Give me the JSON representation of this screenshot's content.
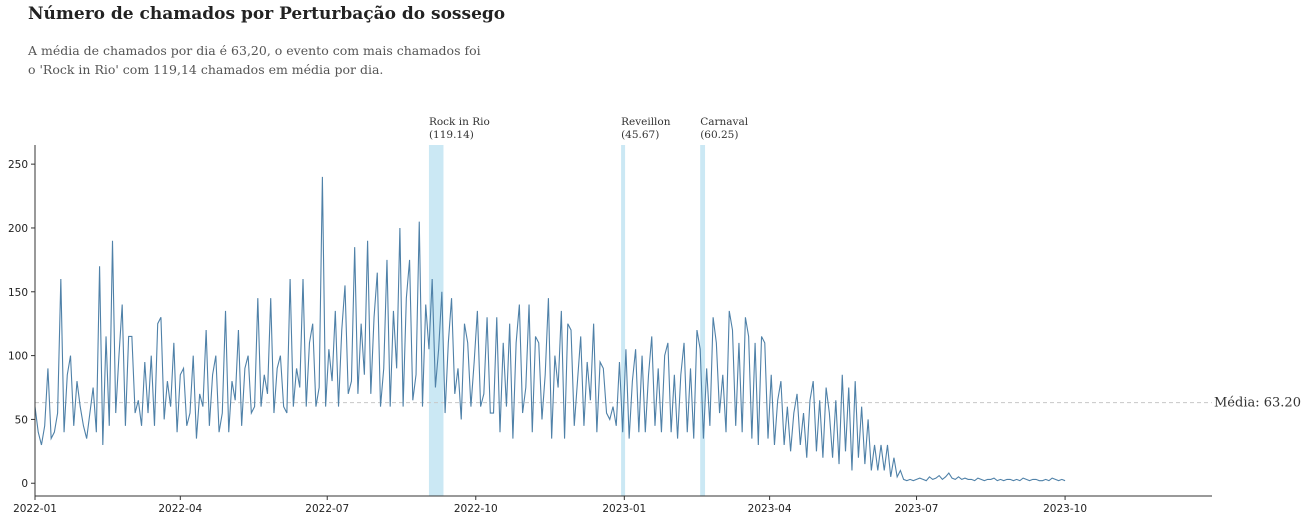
{
  "title": "Número de chamados por Perturbação do sossego",
  "subtitle_lines": [
    "A média de chamados por dia é 63,20, o evento com mais chamados foi",
    "o 'Rock in Rio' com 119,14 chamados em média por dia."
  ],
  "colors": {
    "line": "#4f81a8",
    "event_band": "#a9d8ec",
    "mean_line": "#c8c8c8"
  },
  "chart_data": {
    "type": "line",
    "x_start": "2022-01-01",
    "x_end": "2023-12-31",
    "ylim": [
      -10,
      265
    ],
    "yticks": [
      0,
      50,
      100,
      150,
      200,
      250
    ],
    "xticks": [
      "2022-01",
      "2022-04",
      "2022-07",
      "2022-10",
      "2023-01",
      "2023-04",
      "2023-07",
      "2023-10"
    ],
    "mean": {
      "value": 63.2,
      "label": "Média: 63.20"
    },
    "events": [
      {
        "name": "Rock in Rio",
        "value_label": "(119.14)",
        "start": "2022-09-02",
        "end": "2022-09-11"
      },
      {
        "name": "Reveillon",
        "value_label": "(45.67)",
        "start": "2022-12-30",
        "end": "2023-01-01"
      },
      {
        "name": "Carnaval",
        "value_label": "(60.25)",
        "start": "2023-02-17",
        "end": "2023-02-20"
      }
    ],
    "series": [
      {
        "x_start": "2022-01-01",
        "x_step_days": 2,
        "values": [
          60,
          40,
          30,
          45,
          90,
          35,
          40,
          55,
          160,
          40,
          85,
          100,
          45,
          80,
          60,
          45,
          35,
          55,
          75,
          40,
          170,
          30,
          115,
          45,
          190,
          55,
          100,
          140,
          45,
          115,
          115,
          55,
          65,
          45,
          95,
          55,
          100,
          45,
          125,
          130,
          50,
          80,
          60,
          110,
          40,
          85,
          90,
          45,
          55,
          100,
          35,
          70,
          60,
          120,
          45,
          85,
          100,
          40,
          55,
          135,
          40,
          80,
          65,
          120,
          45,
          90,
          100,
          55,
          60,
          145,
          60,
          85,
          70,
          145,
          55,
          90,
          100,
          60,
          55,
          160,
          60,
          90,
          75,
          160,
          60,
          110,
          125,
          60,
          75,
          240,
          60,
          105,
          80,
          135,
          60,
          120,
          155,
          70,
          80,
          185,
          70,
          125,
          85,
          190,
          70,
          130,
          165,
          60,
          90,
          175,
          60,
          135,
          90,
          200,
          60,
          145,
          175,
          65,
          85,
          205,
          60,
          140,
          105,
          160,
          75,
          105,
          150,
          55,
          110,
          145,
          70,
          90,
          50,
          125,
          110,
          60,
          95,
          135,
          60,
          70,
          130,
          55,
          55,
          130,
          40,
          110,
          60,
          125,
          35,
          110,
          140,
          55,
          75,
          140,
          40,
          115,
          110,
          50,
          85,
          145,
          35,
          100,
          75,
          135,
          35,
          125,
          120,
          45,
          80,
          115,
          45,
          95,
          65,
          125,
          40,
          95,
          90,
          55,
          50,
          60,
          45,
          95,
          40,
          105,
          35,
          80,
          105,
          40,
          100,
          40,
          85,
          115,
          45,
          90,
          40,
          100,
          110,
          40,
          85,
          35,
          85,
          110,
          40,
          90,
          35,
          120,
          105,
          35,
          90,
          45,
          130,
          110,
          55,
          85,
          40,
          135,
          120,
          45,
          110,
          40,
          130,
          115,
          35,
          110,
          30,
          115,
          110,
          35,
          85,
          30,
          65,
          80,
          30,
          60,
          25,
          55,
          70,
          30,
          55,
          20,
          65,
          80,
          25,
          65,
          20,
          75,
          55,
          20,
          65,
          15,
          85,
          25,
          75,
          10,
          80,
          20,
          60,
          15,
          50,
          10,
          30,
          10,
          30,
          10,
          30,
          5,
          20,
          5,
          10,
          3,
          2,
          3,
          2,
          3,
          4,
          3,
          2,
          5,
          3,
          4,
          6,
          3,
          5,
          8,
          4,
          3,
          5,
          3,
          4,
          3,
          3,
          2,
          4,
          3,
          2,
          3,
          3,
          4,
          2,
          3,
          2,
          3,
          3,
          2,
          3,
          2,
          4,
          3,
          2,
          3,
          3,
          2,
          2,
          3,
          2,
          4,
          3,
          2,
          3,
          2
        ]
      }
    ]
  }
}
